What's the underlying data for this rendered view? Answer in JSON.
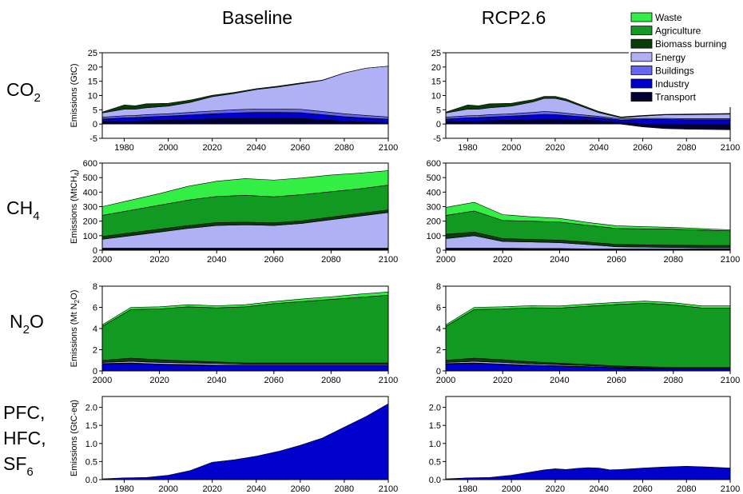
{
  "column_titles": [
    "Baseline",
    "RCP2.6"
  ],
  "row_labels": [
    {
      "main": "CO",
      "sub": "2"
    },
    {
      "main": "CH",
      "sub": "4"
    },
    {
      "main": "N",
      "sub": "2",
      "rest": "O"
    },
    {
      "lines": [
        "PFC,",
        "HFC,",
        "SF"
      ],
      "last_sub": "6"
    }
  ],
  "legend": [
    {
      "name": "Waste",
      "color": "#33ee44"
    },
    {
      "name": "Agriculture",
      "color": "#119922"
    },
    {
      "name": "Biomass burning",
      "color": "#0a3d0a"
    },
    {
      "name": "Energy",
      "color": "#b0b0f5"
    },
    {
      "name": "Buildings",
      "color": "#6666ee"
    },
    {
      "name": "Industry",
      "color": "#0000cc"
    },
    {
      "name": "Transport",
      "color": "#000033"
    }
  ],
  "chart_data": [
    {
      "type": "area",
      "stacked": true,
      "panel": "CO2 Baseline",
      "ylabel": "Emissions (GtC)",
      "ylim": [
        -5,
        25
      ],
      "yticks": [
        -5,
        0,
        5,
        10,
        15,
        20,
        25
      ],
      "xlim": [
        1970,
        2100
      ],
      "xticks": [
        1980,
        2000,
        2020,
        2040,
        2060,
        2080,
        2100
      ],
      "x": [
        1970,
        1980,
        1985,
        1990,
        2000,
        2010,
        2020,
        2030,
        2040,
        2050,
        2060,
        2070,
        2080,
        2090,
        2100
      ],
      "series": [
        {
          "name": "Transport",
          "values": [
            0.8,
            1.0,
            1.1,
            1.2,
            1.4,
            1.6,
            1.8,
            2.0,
            2.1,
            2.1,
            2.0,
            1.5,
            1.0,
            0.7,
            0.5
          ]
        },
        {
          "name": "Industry",
          "values": [
            1.0,
            1.2,
            1.2,
            1.3,
            1.4,
            1.6,
            1.8,
            1.9,
            2.0,
            2.0,
            2.0,
            1.8,
            1.6,
            1.4,
            1.2
          ]
        },
        {
          "name": "Buildings",
          "values": [
            0.6,
            0.7,
            0.7,
            0.8,
            0.8,
            0.9,
            1.0,
            1.1,
            1.2,
            1.2,
            1.2,
            1.1,
            1.0,
            0.9,
            0.8
          ]
        },
        {
          "name": "Energy",
          "values": [
            1.5,
            2.3,
            2.2,
            2.4,
            2.7,
            3.5,
            5.0,
            5.7,
            6.8,
            7.7,
            8.9,
            10.9,
            14.3,
            16.6,
            17.8
          ]
        },
        {
          "name": "Biomass burning",
          "values": [
            0.3,
            1.5,
            1.2,
            1.4,
            1.0,
            0.8,
            0.5,
            0.4,
            0.3,
            0.3,
            0.3,
            0.1,
            0.0,
            0.0,
            0.0
          ]
        },
        {
          "name": "Agriculture",
          "values": [
            0,
            0,
            0,
            0,
            0,
            0,
            0,
            0,
            0,
            0,
            0,
            0,
            0,
            0,
            0
          ]
        },
        {
          "name": "Waste",
          "values": [
            0,
            0,
            0,
            0,
            0,
            0,
            0,
            0,
            0,
            0,
            0,
            0,
            0,
            0,
            0
          ]
        }
      ]
    },
    {
      "type": "area",
      "stacked": true,
      "panel": "CO2 RCP2.6",
      "ylabel": "",
      "ylim": [
        -5,
        25
      ],
      "yticks": [
        -5,
        0,
        5,
        10,
        15,
        20,
        25
      ],
      "xlim": [
        1970,
        2100
      ],
      "xticks": [
        1980,
        2000,
        2020,
        2040,
        2060,
        2080,
        2100
      ],
      "x": [
        1970,
        1980,
        1985,
        1990,
        2000,
        2010,
        2015,
        2020,
        2025,
        2030,
        2040,
        2050,
        2060,
        2070,
        2080,
        2090,
        2100
      ],
      "series": [
        {
          "name": "Transport",
          "values": [
            0.8,
            1.0,
            1.1,
            1.2,
            1.4,
            1.6,
            1.7,
            1.7,
            1.6,
            1.5,
            1.2,
            0.5,
            -1.0,
            -1.6,
            -1.8,
            -1.9,
            -2.0
          ]
        },
        {
          "name": "Industry",
          "values": [
            1.0,
            1.2,
            1.2,
            1.3,
            1.4,
            1.6,
            1.7,
            1.6,
            1.4,
            1.2,
            1.0,
            0.9,
            1.6,
            1.6,
            1.5,
            1.5,
            1.5
          ]
        },
        {
          "name": "Buildings",
          "values": [
            0.6,
            0.7,
            0.7,
            0.8,
            0.8,
            0.9,
            1.0,
            0.9,
            0.8,
            0.7,
            0.5,
            0.4,
            0.4,
            0.4,
            0.4,
            0.4,
            0.4
          ]
        },
        {
          "name": "Energy",
          "values": [
            1.5,
            2.3,
            2.2,
            2.4,
            2.7,
            3.7,
            4.6,
            4.8,
            4.4,
            3.4,
            1.3,
            0.4,
            0.8,
            1.2,
            1.4,
            1.5,
            1.6
          ]
        },
        {
          "name": "Biomass burning",
          "values": [
            0.3,
            1.5,
            1.2,
            1.4,
            1.0,
            0.8,
            0.7,
            0.7,
            0.6,
            0.5,
            0.4,
            0.3,
            0.2,
            0.2,
            0.2,
            0.2,
            0.2
          ]
        },
        {
          "name": "Agriculture",
          "values": [
            0,
            0,
            0,
            0,
            0,
            0,
            0,
            0,
            0,
            0,
            0,
            0,
            0,
            0,
            0,
            0,
            0
          ]
        },
        {
          "name": "Waste",
          "values": [
            0,
            0,
            0,
            0,
            0,
            0,
            0,
            0,
            0,
            0,
            0,
            0,
            0,
            0,
            0,
            0,
            0
          ]
        }
      ]
    },
    {
      "type": "area",
      "stacked": true,
      "panel": "CH4 Baseline",
      "ylabel": "Emissions (MtCH4)",
      "ylim": [
        0,
        600
      ],
      "yticks": [
        0,
        100,
        200,
        300,
        400,
        500,
        600
      ],
      "xlim": [
        2000,
        2100
      ],
      "xticks": [
        2000,
        2020,
        2040,
        2060,
        2080,
        2100
      ],
      "x": [
        2000,
        2010,
        2020,
        2030,
        2040,
        2050,
        2060,
        2070,
        2080,
        2090,
        2100
      ],
      "series": [
        {
          "name": "Transport",
          "values": [
            5,
            5,
            5,
            5,
            5,
            5,
            5,
            5,
            5,
            5,
            5
          ]
        },
        {
          "name": "Industry",
          "values": [
            5,
            5,
            5,
            5,
            5,
            5,
            5,
            5,
            5,
            5,
            5
          ]
        },
        {
          "name": "Buildings",
          "values": [
            5,
            5,
            5,
            5,
            5,
            5,
            5,
            5,
            5,
            5,
            5
          ]
        },
        {
          "name": "Energy",
          "values": [
            60,
            85,
            110,
            135,
            155,
            160,
            155,
            170,
            195,
            220,
            245
          ]
        },
        {
          "name": "Biomass burning",
          "values": [
            20,
            20,
            20,
            20,
            20,
            18,
            18,
            18,
            18,
            18,
            18
          ]
        },
        {
          "name": "Agriculture",
          "values": [
            145,
            155,
            165,
            175,
            180,
            185,
            180,
            180,
            175,
            170,
            170
          ]
        },
        {
          "name": "Waste",
          "values": [
            60,
            70,
            80,
            95,
            105,
            115,
            115,
            115,
            115,
            108,
            100
          ]
        }
      ]
    },
    {
      "type": "area",
      "stacked": true,
      "panel": "CH4 RCP2.6",
      "ylabel": "",
      "ylim": [
        0,
        600
      ],
      "yticks": [
        0,
        100,
        200,
        300,
        400,
        500,
        600
      ],
      "xlim": [
        2000,
        2100
      ],
      "xticks": [
        2000,
        2020,
        2040,
        2060,
        2080,
        2100
      ],
      "x": [
        2000,
        2010,
        2020,
        2030,
        2040,
        2050,
        2060,
        2070,
        2080,
        2090,
        2100
      ],
      "series": [
        {
          "name": "Transport",
          "values": [
            5,
            5,
            5,
            4,
            4,
            3,
            3,
            3,
            3,
            3,
            3
          ]
        },
        {
          "name": "Industry",
          "values": [
            5,
            5,
            5,
            4,
            4,
            3,
            3,
            3,
            3,
            3,
            3
          ]
        },
        {
          "name": "Buildings",
          "values": [
            5,
            5,
            5,
            4,
            4,
            3,
            3,
            3,
            3,
            3,
            3
          ]
        },
        {
          "name": "Energy",
          "values": [
            65,
            85,
            45,
            45,
            40,
            30,
            15,
            12,
            10,
            8,
            8
          ]
        },
        {
          "name": "Biomass burning",
          "values": [
            30,
            25,
            20,
            18,
            17,
            17,
            16,
            16,
            16,
            16,
            16
          ]
        },
        {
          "name": "Agriculture",
          "values": [
            130,
            145,
            125,
            125,
            125,
            115,
            110,
            110,
            110,
            105,
            100
          ]
        },
        {
          "name": "Waste",
          "values": [
            55,
            60,
            40,
            30,
            25,
            20,
            18,
            15,
            12,
            10,
            8
          ]
        }
      ]
    },
    {
      "type": "area",
      "stacked": true,
      "panel": "N2O Baseline",
      "ylabel": "Emissions (Mt N2O)",
      "ylim": [
        0,
        8
      ],
      "yticks": [
        0,
        2,
        4,
        6,
        8
      ],
      "xlim": [
        2000,
        2100
      ],
      "xticks": [
        2000,
        2020,
        2040,
        2060,
        2080,
        2100
      ],
      "x": [
        2000,
        2010,
        2020,
        2030,
        2040,
        2050,
        2060,
        2070,
        2080,
        2090,
        2100
      ],
      "series": [
        {
          "name": "Transport",
          "values": [
            0.05,
            0.05,
            0.05,
            0.05,
            0.05,
            0.05,
            0.05,
            0.05,
            0.05,
            0.05,
            0.05
          ]
        },
        {
          "name": "Industry",
          "values": [
            0.6,
            0.65,
            0.55,
            0.5,
            0.45,
            0.45,
            0.45,
            0.45,
            0.45,
            0.45,
            0.45
          ]
        },
        {
          "name": "Buildings",
          "values": [
            0.05,
            0.05,
            0.05,
            0.05,
            0.05,
            0.05,
            0.05,
            0.05,
            0.05,
            0.05,
            0.05
          ]
        },
        {
          "name": "Energy",
          "values": [
            0.1,
            0.15,
            0.15,
            0.15,
            0.15,
            0.1,
            0.1,
            0.1,
            0.1,
            0.1,
            0.1
          ]
        },
        {
          "name": "Biomass burning",
          "values": [
            0.2,
            0.3,
            0.25,
            0.2,
            0.15,
            0.1,
            0.1,
            0.1,
            0.1,
            0.1,
            0.1
          ]
        },
        {
          "name": "Agriculture",
          "values": [
            3.2,
            4.6,
            4.8,
            5.1,
            5.1,
            5.3,
            5.6,
            5.8,
            6.0,
            6.2,
            6.4
          ]
        },
        {
          "name": "Waste",
          "values": [
            0.15,
            0.2,
            0.2,
            0.2,
            0.2,
            0.2,
            0.2,
            0.25,
            0.25,
            0.3,
            0.3
          ]
        }
      ]
    },
    {
      "type": "area",
      "stacked": true,
      "panel": "N2O RCP2.6",
      "ylabel": "",
      "ylim": [
        0,
        8
      ],
      "yticks": [
        0,
        2,
        4,
        6,
        8
      ],
      "xlim": [
        2000,
        2100
      ],
      "xticks": [
        2000,
        2020,
        2040,
        2060,
        2080,
        2100
      ],
      "x": [
        2000,
        2010,
        2020,
        2030,
        2040,
        2050,
        2060,
        2070,
        2080,
        2090,
        2100
      ],
      "series": [
        {
          "name": "Transport",
          "values": [
            0.05,
            0.05,
            0.05,
            0.05,
            0.04,
            0.03,
            0.03,
            0.02,
            0.02,
            0.02,
            0.02
          ]
        },
        {
          "name": "Industry",
          "values": [
            0.6,
            0.65,
            0.55,
            0.45,
            0.4,
            0.35,
            0.25,
            0.2,
            0.15,
            0.15,
            0.15
          ]
        },
        {
          "name": "Buildings",
          "values": [
            0.05,
            0.05,
            0.05,
            0.04,
            0.04,
            0.03,
            0.03,
            0.02,
            0.02,
            0.02,
            0.02
          ]
        },
        {
          "name": "Energy",
          "values": [
            0.1,
            0.15,
            0.15,
            0.12,
            0.1,
            0.08,
            0.06,
            0.05,
            0.05,
            0.05,
            0.05
          ]
        },
        {
          "name": "Biomass burning",
          "values": [
            0.2,
            0.3,
            0.25,
            0.2,
            0.15,
            0.12,
            0.1,
            0.1,
            0.1,
            0.1,
            0.1
          ]
        },
        {
          "name": "Agriculture",
          "values": [
            3.2,
            4.6,
            4.8,
            5.1,
            5.2,
            5.5,
            5.8,
            6.0,
            5.9,
            5.6,
            5.6
          ]
        },
        {
          "name": "Waste",
          "values": [
            0.15,
            0.2,
            0.2,
            0.2,
            0.2,
            0.2,
            0.2,
            0.2,
            0.2,
            0.2,
            0.2
          ]
        }
      ]
    },
    {
      "type": "area",
      "stacked": true,
      "panel": "PFC, HFC, SF6 Baseline",
      "ylabel": "Emissions (GtC-eq)",
      "ylim": [
        0,
        2.3
      ],
      "yticks": [
        0.0,
        0.5,
        1.0,
        1.5,
        2.0
      ],
      "xlim": [
        1970,
        2100
      ],
      "xticks": [
        1980,
        2000,
        2020,
        2040,
        2060,
        2080,
        2100
      ],
      "x": [
        1970,
        1980,
        1990,
        2000,
        2010,
        2020,
        2030,
        2040,
        2050,
        2060,
        2070,
        2080,
        2090,
        2100
      ],
      "series": [
        {
          "name": "Industry",
          "values": [
            0.02,
            0.05,
            0.06,
            0.12,
            0.25,
            0.48,
            0.55,
            0.65,
            0.78,
            0.95,
            1.15,
            1.45,
            1.75,
            2.1
          ]
        }
      ]
    },
    {
      "type": "area",
      "stacked": true,
      "panel": "PFC, HFC, SF6 RCP2.6",
      "ylabel": "",
      "ylim": [
        0,
        2.3
      ],
      "yticks": [
        0.0,
        0.5,
        1.0,
        1.5,
        2.0
      ],
      "xlim": [
        1970,
        2100
      ],
      "xticks": [
        1980,
        2000,
        2020,
        2040,
        2060,
        2080,
        2100
      ],
      "x": [
        1970,
        1980,
        1990,
        2000,
        2010,
        2015,
        2020,
        2025,
        2030,
        2035,
        2040,
        2045,
        2050,
        2060,
        2070,
        2080,
        2090,
        2100
      ],
      "series": [
        {
          "name": "Industry",
          "values": [
            0.02,
            0.05,
            0.06,
            0.12,
            0.22,
            0.27,
            0.3,
            0.28,
            0.31,
            0.33,
            0.32,
            0.27,
            0.28,
            0.32,
            0.35,
            0.37,
            0.35,
            0.32
          ]
        }
      ]
    }
  ]
}
